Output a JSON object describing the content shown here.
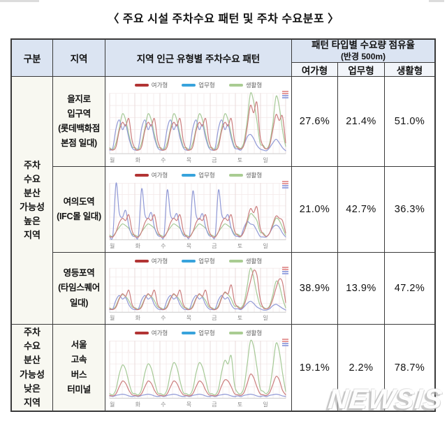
{
  "page": {
    "title": "〈 주요 시설 주차수요 패턴 및 주차 수요분포 〉",
    "watermark": "NEWSIS"
  },
  "table": {
    "headers": {
      "col_group": "구분",
      "col_region": "지역",
      "col_pattern": "지역 인근 유형별 주차수요 패턴",
      "share_title": "패턴 타입별 수요량 점유율",
      "share_sub": "(반경 500m)",
      "types": [
        "여가형",
        "업무형",
        "생활형"
      ]
    },
    "groups": [
      {
        "label": "주차\n수요\n분산\n가능성\n높은\n지역"
      },
      {
        "label": "주차\n수요\n분산\n가능성\n낮은\n지역"
      }
    ],
    "rows": [
      {
        "region": "을지로\n입구역\n(롯데백화점\n본점 일대)",
        "values": [
          "27.6%",
          "21.4%",
          "51.0%"
        ]
      },
      {
        "region": "여의도역\n(IFC몰 일대)",
        "values": [
          "21.0%",
          "42.7%",
          "36.3%"
        ]
      },
      {
        "region": "영등포역\n(타임스퀘어\n일대)",
        "values": [
          "38.9%",
          "13.9%",
          "47.2%"
        ]
      },
      {
        "region": "서울\n고속\n버스\n터미널",
        "values": [
          "19.1%",
          "2.2%",
          "78.7%"
        ]
      }
    ]
  },
  "days": [
    "월",
    "화",
    "수",
    "목",
    "금",
    "토",
    "일"
  ],
  "chart_data": [
    {
      "type": "line",
      "region": "을지로입구역 (롯데백화점 본점 일대)",
      "categories": [
        "월",
        "화",
        "수",
        "목",
        "금",
        "토",
        "일"
      ],
      "samples_per_day": 8,
      "y_range": [
        0,
        100
      ],
      "legend_position": "top",
      "grid": true,
      "series": [
        {
          "name": "여가형",
          "legend_color": "#b23434",
          "color": "#cb7d7d",
          "values": [
            8,
            6,
            12,
            38,
            52,
            46,
            58,
            22,
            8,
            6,
            12,
            38,
            52,
            46,
            58,
            22,
            8,
            6,
            12,
            38,
            52,
            46,
            58,
            22,
            8,
            6,
            12,
            38,
            52,
            46,
            58,
            22,
            8,
            6,
            12,
            38,
            52,
            46,
            58,
            22,
            10,
            8,
            15,
            45,
            80,
            68,
            85,
            30,
            12,
            8,
            14,
            40,
            65,
            55,
            62,
            18
          ]
        },
        {
          "name": "업무형",
          "legend_color": "#38a3dc",
          "color": "#9099d6",
          "values": [
            6,
            10,
            42,
            56,
            40,
            48,
            26,
            10,
            6,
            10,
            42,
            56,
            40,
            48,
            26,
            10,
            6,
            10,
            42,
            56,
            40,
            48,
            26,
            10,
            6,
            10,
            42,
            56,
            40,
            48,
            26,
            10,
            6,
            10,
            42,
            56,
            40,
            48,
            26,
            10,
            8,
            6,
            15,
            28,
            32,
            25,
            14,
            8,
            6,
            5,
            10,
            18,
            24,
            18,
            10,
            5
          ]
        },
        {
          "name": "생활형",
          "legend_color": "#a9cc92",
          "color": "#a5c996",
          "values": [
            10,
            7,
            18,
            42,
            66,
            56,
            32,
            12,
            10,
            7,
            18,
            42,
            66,
            56,
            32,
            12,
            10,
            7,
            18,
            42,
            66,
            56,
            32,
            12,
            10,
            7,
            18,
            42,
            66,
            56,
            32,
            12,
            10,
            7,
            18,
            42,
            66,
            56,
            32,
            12,
            12,
            9,
            20,
            55,
            100,
            86,
            55,
            18,
            14,
            8,
            18,
            50,
            95,
            78,
            40,
            12
          ]
        }
      ]
    },
    {
      "type": "line",
      "region": "여의도역 (IFC몰 일대)",
      "categories": [
        "월",
        "화",
        "수",
        "목",
        "금",
        "토",
        "일"
      ],
      "samples_per_day": 8,
      "y_range": [
        0,
        100
      ],
      "legend_position": "top",
      "grid": true,
      "series": [
        {
          "name": "여가형",
          "legend_color": "#b23434",
          "color": "#cb7d7d",
          "values": [
            6,
            5,
            14,
            30,
            38,
            34,
            44,
            16,
            6,
            5,
            14,
            30,
            38,
            34,
            44,
            16,
            6,
            5,
            14,
            30,
            38,
            34,
            44,
            16,
            6,
            5,
            14,
            30,
            38,
            34,
            44,
            16,
            6,
            5,
            14,
            30,
            38,
            34,
            44,
            16,
            8,
            6,
            15,
            35,
            55,
            48,
            58,
            22,
            10,
            6,
            12,
            28,
            42,
            38,
            34,
            12
          ]
        },
        {
          "name": "업무형",
          "legend_color": "#38a3dc",
          "color": "#9099d6",
          "values": [
            6,
            8,
            100,
            48,
            40,
            52,
            24,
            8,
            6,
            8,
            90,
            45,
            38,
            48,
            22,
            8,
            6,
            8,
            88,
            44,
            38,
            46,
            22,
            8,
            6,
            8,
            86,
            44,
            36,
            46,
            22,
            8,
            6,
            8,
            88,
            45,
            38,
            44,
            20,
            8,
            6,
            6,
            22,
            32,
            28,
            26,
            16,
            6,
            5,
            5,
            12,
            22,
            26,
            22,
            12,
            5
          ]
        },
        {
          "name": "생활형",
          "legend_color": "#a9cc92",
          "color": "#a5c996",
          "values": [
            8,
            6,
            14,
            22,
            28,
            25,
            20,
            10,
            8,
            6,
            14,
            22,
            28,
            25,
            20,
            10,
            8,
            6,
            14,
            22,
            28,
            25,
            20,
            10,
            8,
            6,
            14,
            22,
            28,
            25,
            20,
            10,
            8,
            6,
            14,
            22,
            28,
            25,
            20,
            10,
            10,
            7,
            15,
            30,
            46,
            42,
            34,
            14,
            12,
            6,
            12,
            25,
            38,
            34,
            22,
            8
          ]
        }
      ]
    },
    {
      "type": "line",
      "region": "영등포역 (타임스퀘어 일대)",
      "categories": [
        "월",
        "화",
        "수",
        "목",
        "금",
        "토",
        "일"
      ],
      "samples_per_day": 8,
      "y_range": [
        0,
        100
      ],
      "legend_position": "top",
      "grid": true,
      "series": [
        {
          "name": "여가형",
          "legend_color": "#b23434",
          "color": "#cb7d7d",
          "values": [
            8,
            6,
            12,
            30,
            42,
            36,
            50,
            18,
            8,
            6,
            12,
            30,
            42,
            36,
            50,
            18,
            8,
            6,
            12,
            30,
            42,
            36,
            50,
            18,
            8,
            6,
            12,
            30,
            42,
            36,
            50,
            18,
            8,
            6,
            12,
            32,
            46,
            42,
            62,
            24,
            12,
            8,
            16,
            40,
            70,
            95,
            85,
            32,
            10,
            8,
            12,
            30,
            55,
            75,
            68,
            22
          ]
        },
        {
          "name": "업무형",
          "legend_color": "#38a3dc",
          "color": "#9099d6",
          "values": [
            6,
            8,
            28,
            38,
            30,
            33,
            17,
            8,
            6,
            8,
            28,
            38,
            30,
            33,
            17,
            8,
            6,
            8,
            28,
            38,
            30,
            33,
            17,
            8,
            6,
            8,
            28,
            38,
            30,
            33,
            17,
            8,
            6,
            8,
            28,
            38,
            30,
            33,
            17,
            8,
            8,
            6,
            12,
            20,
            25,
            20,
            12,
            8,
            5,
            5,
            8,
            15,
            18,
            14,
            9,
            5
          ]
        },
        {
          "name": "생활형",
          "legend_color": "#a9cc92",
          "color": "#a5c996",
          "values": [
            10,
            7,
            15,
            32,
            40,
            36,
            26,
            12,
            10,
            7,
            15,
            32,
            40,
            36,
            26,
            12,
            10,
            7,
            15,
            32,
            40,
            36,
            26,
            12,
            10,
            7,
            15,
            32,
            40,
            36,
            26,
            12,
            10,
            7,
            15,
            34,
            44,
            40,
            30,
            14,
            14,
            10,
            22,
            60,
            100,
            78,
            42,
            16,
            12,
            8,
            15,
            40,
            70,
            62,
            32,
            10
          ]
        }
      ]
    },
    {
      "type": "line",
      "region": "서울 고속 버스 터미널",
      "categories": [
        "월",
        "화",
        "수",
        "목",
        "금",
        "토",
        "일"
      ],
      "samples_per_day": 8,
      "y_range": [
        0,
        100
      ],
      "legend_position": "top",
      "grid": true,
      "series": [
        {
          "name": "여가형",
          "legend_color": "#b23434",
          "color": "#cb7d7d",
          "values": [
            5,
            4,
            8,
            20,
            30,
            26,
            14,
            6,
            5,
            4,
            8,
            20,
            30,
            26,
            14,
            6,
            5,
            4,
            8,
            20,
            30,
            26,
            14,
            6,
            5,
            4,
            8,
            20,
            30,
            26,
            14,
            6,
            5,
            4,
            8,
            22,
            32,
            30,
            20,
            8,
            6,
            5,
            10,
            26,
            42,
            36,
            20,
            8,
            6,
            5,
            10,
            24,
            38,
            32,
            14,
            6
          ]
        },
        {
          "name": "업무형",
          "legend_color": "#38a3dc",
          "color": "#9099d6",
          "values": [
            4,
            3,
            5,
            6,
            7,
            6,
            4,
            3,
            4,
            3,
            5,
            6,
            7,
            6,
            4,
            3,
            4,
            3,
            5,
            6,
            7,
            6,
            4,
            3,
            4,
            3,
            5,
            6,
            7,
            6,
            4,
            3,
            4,
            3,
            5,
            6,
            7,
            6,
            4,
            3,
            4,
            3,
            5,
            6,
            7,
            6,
            4,
            3,
            4,
            3,
            5,
            6,
            7,
            6,
            4,
            3
          ]
        },
        {
          "name": "생활형",
          "legend_color": "#a9cc92",
          "color": "#a5c996",
          "values": [
            8,
            6,
            16,
            42,
            58,
            50,
            28,
            10,
            8,
            6,
            16,
            44,
            60,
            52,
            30,
            10,
            8,
            6,
            16,
            44,
            62,
            54,
            30,
            10,
            8,
            6,
            16,
            44,
            62,
            54,
            32,
            10,
            8,
            6,
            16,
            46,
            66,
            60,
            74,
            24,
            10,
            8,
            20,
            60,
            100,
            90,
            55,
            18,
            12,
            8,
            18,
            55,
            96,
            82,
            45,
            12
          ]
        }
      ]
    }
  ]
}
